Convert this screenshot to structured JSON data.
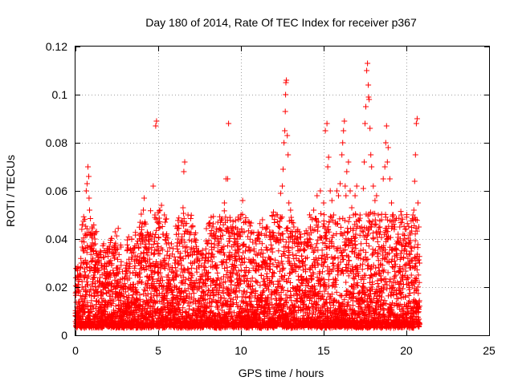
{
  "chart_data": {
    "type": "scatter",
    "title": "Day 180 of 2014, Rate Of TEC Index for receiver p367",
    "xlabel": "GPS time / hours",
    "ylabel": "ROTI / TECUs",
    "xlim": [
      0,
      25
    ],
    "ylim": [
      0,
      0.12
    ],
    "grid": true,
    "marker": "+",
    "color": "#ff0000",
    "x_ticks": [
      {
        "value": 0,
        "label": "0"
      },
      {
        "value": 5,
        "label": "5"
      },
      {
        "value": 10,
        "label": "10"
      },
      {
        "value": 15,
        "label": "15"
      },
      {
        "value": 20,
        "label": "20"
      },
      {
        "value": 25,
        "label": "25"
      }
    ],
    "y_ticks": [
      {
        "value": 0,
        "label": "0"
      },
      {
        "value": 0.02,
        "label": "0.02"
      },
      {
        "value": 0.04,
        "label": "0.04"
      },
      {
        "value": 0.06,
        "label": "0.06"
      },
      {
        "value": 0.08,
        "label": "0.08"
      },
      {
        "value": 0.1,
        "label": "0.1"
      },
      {
        "value": 0.12,
        "label": "0.12"
      }
    ],
    "series": [
      {
        "name": "ROTI",
        "points": [
          [
            0.05,
            0.018
          ],
          [
            0.1,
            0.024
          ],
          [
            0.15,
            0.009
          ],
          [
            0.2,
            0.025
          ],
          [
            0.25,
            0.012
          ],
          [
            0.3,
            0.028
          ],
          [
            0.35,
            0.015
          ],
          [
            0.4,
            0.02
          ],
          [
            0.45,
            0.03
          ],
          [
            0.5,
            0.011
          ],
          [
            0.55,
            0.024
          ],
          [
            0.6,
            0.016
          ],
          [
            0.65,
            0.06
          ],
          [
            0.7,
            0.063
          ],
          [
            0.75,
            0.07
          ],
          [
            0.8,
            0.066
          ],
          [
            0.82,
            0.057
          ],
          [
            0.85,
            0.052
          ],
          [
            0.9,
            0.042
          ],
          [
            0.95,
            0.037
          ],
          [
            1.0,
            0.045
          ],
          [
            1.05,
            0.032
          ],
          [
            1.1,
            0.025
          ],
          [
            1.2,
            0.038
          ],
          [
            1.3,
            0.034
          ],
          [
            1.4,
            0.03
          ],
          [
            1.5,
            0.035
          ],
          [
            1.6,
            0.028
          ],
          [
            1.7,
            0.038
          ],
          [
            1.8,
            0.022
          ],
          [
            1.9,
            0.03
          ],
          [
            2.0,
            0.018
          ],
          [
            2.1,
            0.026
          ],
          [
            2.2,
            0.015
          ],
          [
            2.3,
            0.02
          ],
          [
            2.4,
            0.043
          ],
          [
            2.5,
            0.028
          ],
          [
            2.6,
            0.016
          ],
          [
            2.7,
            0.022
          ],
          [
            2.8,
            0.012
          ],
          [
            2.9,
            0.019
          ],
          [
            3.0,
            0.024
          ],
          [
            3.1,
            0.03
          ],
          [
            3.2,
            0.014
          ],
          [
            3.3,
            0.026
          ],
          [
            3.4,
            0.04
          ],
          [
            3.5,
            0.02
          ],
          [
            3.6,
            0.033
          ],
          [
            3.7,
            0.018
          ],
          [
            3.8,
            0.03
          ],
          [
            3.9,
            0.042
          ],
          [
            4.0,
            0.045
          ],
          [
            4.1,
            0.052
          ],
          [
            4.15,
            0.057
          ],
          [
            4.2,
            0.047
          ],
          [
            4.3,
            0.036
          ],
          [
            4.4,
            0.042
          ],
          [
            4.5,
            0.03
          ],
          [
            4.6,
            0.04
          ],
          [
            4.7,
            0.062
          ],
          [
            4.8,
            0.05
          ],
          [
            4.85,
            0.087
          ],
          [
            4.9,
            0.089
          ],
          [
            4.95,
            0.047
          ],
          [
            5.0,
            0.034
          ],
          [
            5.1,
            0.052
          ],
          [
            5.2,
            0.054
          ],
          [
            5.3,
            0.042
          ],
          [
            5.4,
            0.03
          ],
          [
            5.5,
            0.038
          ],
          [
            5.6,
            0.025
          ],
          [
            5.7,
            0.033
          ],
          [
            5.8,
            0.038
          ],
          [
            5.9,
            0.036
          ],
          [
            6.0,
            0.03
          ],
          [
            6.2,
            0.04
          ],
          [
            6.4,
            0.047
          ],
          [
            6.5,
            0.053
          ],
          [
            6.55,
            0.068
          ],
          [
            6.6,
            0.072
          ],
          [
            6.8,
            0.05
          ],
          [
            7.0,
            0.045
          ],
          [
            7.2,
            0.04
          ],
          [
            7.4,
            0.032
          ],
          [
            7.6,
            0.034
          ],
          [
            7.8,
            0.03
          ],
          [
            8.0,
            0.038
          ],
          [
            8.2,
            0.049
          ],
          [
            8.3,
            0.045
          ],
          [
            8.5,
            0.043
          ],
          [
            8.6,
            0.047
          ],
          [
            8.8,
            0.04
          ],
          [
            9.0,
            0.055
          ],
          [
            9.1,
            0.065
          ],
          [
            9.2,
            0.065
          ],
          [
            9.25,
            0.088
          ],
          [
            9.4,
            0.045
          ],
          [
            9.6,
            0.042
          ],
          [
            9.8,
            0.04
          ],
          [
            10.0,
            0.05
          ],
          [
            10.1,
            0.056
          ],
          [
            10.2,
            0.043
          ],
          [
            10.5,
            0.047
          ],
          [
            10.8,
            0.035
          ],
          [
            11.0,
            0.04
          ],
          [
            11.3,
            0.048
          ],
          [
            11.6,
            0.045
          ],
          [
            12.0,
            0.04
          ],
          [
            12.2,
            0.05
          ],
          [
            12.4,
            0.059
          ],
          [
            12.5,
            0.062
          ],
          [
            12.55,
            0.069
          ],
          [
            12.6,
            0.08
          ],
          [
            12.65,
            0.085
          ],
          [
            12.68,
            0.093
          ],
          [
            12.7,
            0.1
          ],
          [
            12.72,
            0.105
          ],
          [
            12.75,
            0.106
          ],
          [
            12.8,
            0.083
          ],
          [
            12.85,
            0.075
          ],
          [
            12.9,
            0.055
          ],
          [
            13.0,
            0.052
          ],
          [
            13.2,
            0.045
          ],
          [
            13.4,
            0.04
          ],
          [
            13.6,
            0.042
          ],
          [
            13.8,
            0.038
          ],
          [
            14.0,
            0.04
          ],
          [
            14.2,
            0.045
          ],
          [
            14.4,
            0.052
          ],
          [
            14.6,
            0.058
          ],
          [
            14.8,
            0.06
          ],
          [
            15.0,
            0.055
          ],
          [
            15.1,
            0.085
          ],
          [
            15.2,
            0.088
          ],
          [
            15.25,
            0.07
          ],
          [
            15.3,
            0.074
          ],
          [
            15.4,
            0.06
          ],
          [
            15.5,
            0.056
          ],
          [
            15.6,
            0.05
          ],
          [
            15.7,
            0.047
          ],
          [
            15.8,
            0.06
          ],
          [
            15.9,
            0.058
          ],
          [
            16.0,
            0.063
          ],
          [
            16.1,
            0.075
          ],
          [
            16.15,
            0.08
          ],
          [
            16.2,
            0.085
          ],
          [
            16.25,
            0.089
          ],
          [
            16.3,
            0.062
          ],
          [
            16.35,
            0.058
          ],
          [
            16.4,
            0.068
          ],
          [
            16.5,
            0.072
          ],
          [
            16.6,
            0.06
          ],
          [
            16.7,
            0.053
          ],
          [
            16.8,
            0.05
          ],
          [
            16.9,
            0.058
          ],
          [
            17.0,
            0.062
          ],
          [
            17.1,
            0.048
          ],
          [
            17.2,
            0.05
          ],
          [
            17.3,
            0.045
          ],
          [
            17.4,
            0.061
          ],
          [
            17.45,
            0.072
          ],
          [
            17.5,
            0.088
          ],
          [
            17.55,
            0.095
          ],
          [
            17.6,
            0.11
          ],
          [
            17.65,
            0.113
          ],
          [
            17.7,
            0.104
          ],
          [
            17.72,
            0.099
          ],
          [
            17.75,
            0.098
          ],
          [
            17.8,
            0.086
          ],
          [
            17.85,
            0.075
          ],
          [
            17.9,
            0.07
          ],
          [
            18.0,
            0.062
          ],
          [
            18.1,
            0.056
          ],
          [
            18.2,
            0.058
          ],
          [
            18.3,
            0.05
          ],
          [
            18.4,
            0.045
          ],
          [
            18.5,
            0.048
          ],
          [
            18.6,
            0.065
          ],
          [
            18.7,
            0.07
          ],
          [
            18.75,
            0.08
          ],
          [
            18.8,
            0.087
          ],
          [
            18.85,
            0.072
          ],
          [
            18.9,
            0.078
          ],
          [
            19.0,
            0.065
          ],
          [
            19.1,
            0.055
          ],
          [
            19.2,
            0.05
          ],
          [
            19.3,
            0.045
          ],
          [
            19.4,
            0.038
          ],
          [
            19.5,
            0.042
          ],
          [
            19.6,
            0.045
          ],
          [
            19.7,
            0.05
          ],
          [
            19.8,
            0.042
          ],
          [
            19.9,
            0.04
          ],
          [
            20.0,
            0.035
          ],
          [
            20.1,
            0.03
          ],
          [
            20.2,
            0.028
          ],
          [
            20.3,
            0.025
          ],
          [
            20.4,
            0.05
          ],
          [
            20.45,
            0.052
          ],
          [
            20.5,
            0.064
          ],
          [
            20.55,
            0.075
          ],
          [
            20.6,
            0.088
          ],
          [
            20.65,
            0.09
          ],
          [
            20.7,
            0.055
          ],
          [
            20.75,
            0.045
          ],
          [
            20.8,
            0.03
          ]
        ],
        "band": {
          "note": "dense bulk of ROTI values between about 0.004 and 0.035 TECUs from 0 to 20.8 hours",
          "x_start": 0,
          "x_end": 20.8,
          "y_min": 0.003,
          "y_typical": 0.015
        }
      }
    ]
  }
}
